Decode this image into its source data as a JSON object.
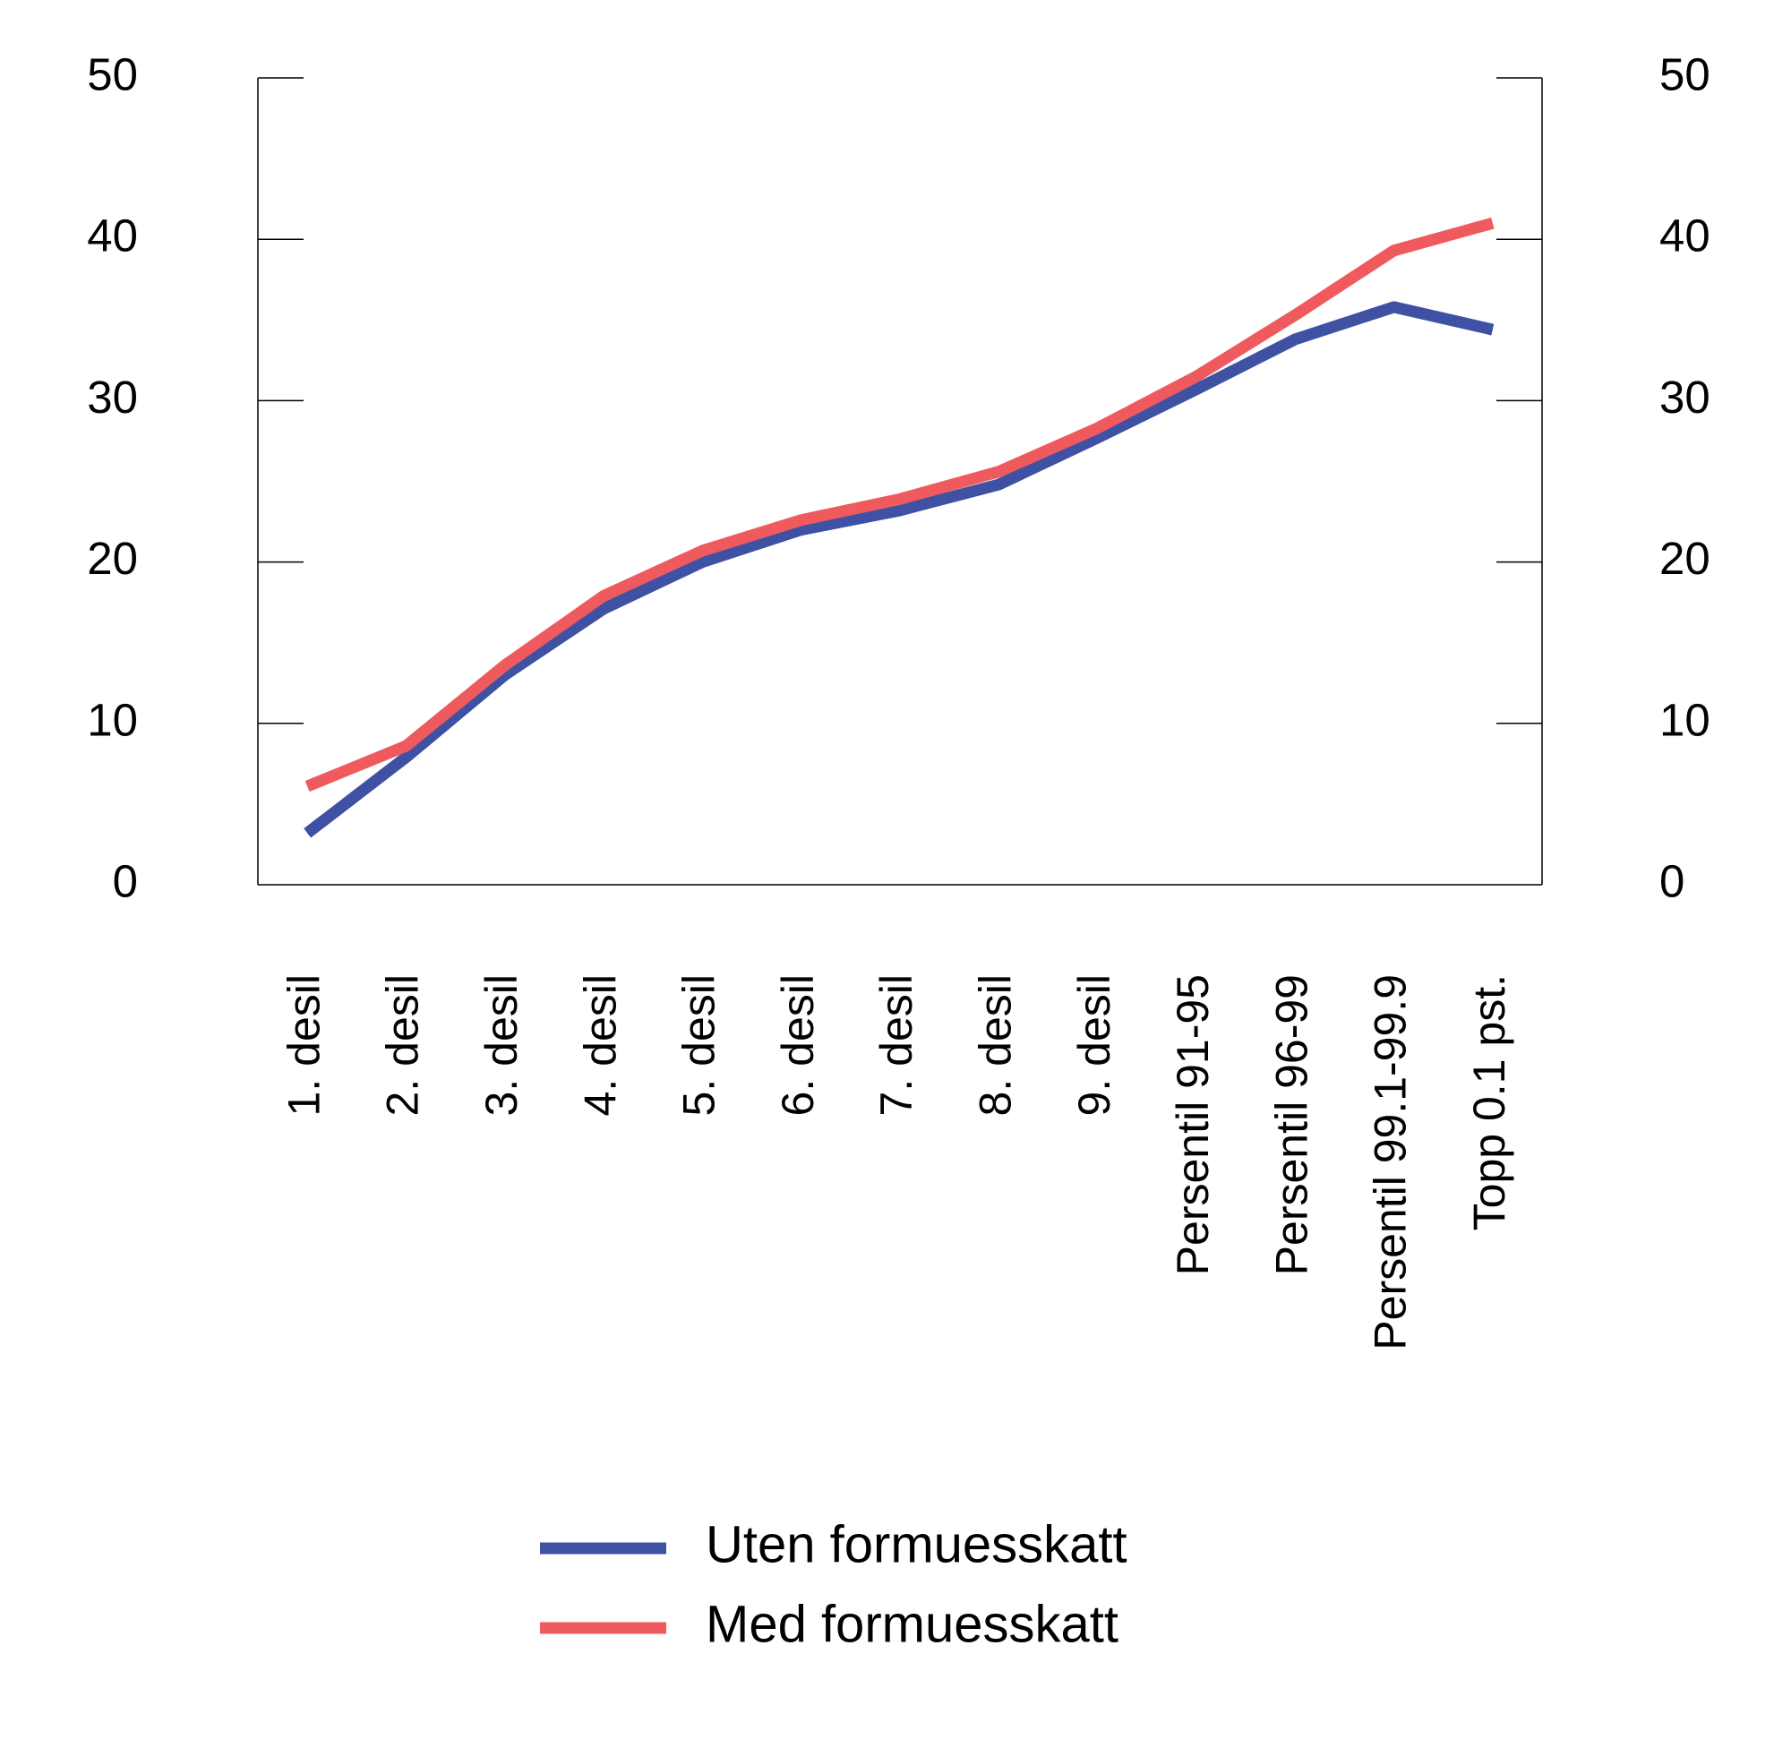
{
  "chart_data": {
    "type": "line",
    "categories": [
      "1. desil",
      "2. desil",
      "3. desil",
      "4. desil",
      "5. desil",
      "6. desil",
      "7. desil",
      "8. desil",
      "9. desil",
      "Persentil 91-95",
      "Persentil 96-99",
      "Persentil 99.1-99.9",
      "Topp 0.1 pst."
    ],
    "series": [
      {
        "name": "Uten formuesskatt",
        "color": "#3f51a3",
        "values": [
          3.2,
          7.9,
          13.0,
          17.1,
          20.0,
          22.0,
          23.2,
          24.8,
          27.7,
          30.7,
          33.8,
          35.8,
          34.4
        ]
      },
      {
        "name": "Med formuesskatt",
        "color": "#ef5a5f",
        "values": [
          6.1,
          8.6,
          13.6,
          17.9,
          20.7,
          22.6,
          23.9,
          25.6,
          28.3,
          31.5,
          35.3,
          39.3,
          41.0
        ]
      }
    ],
    "ylim": [
      0,
      50
    ],
    "yticks": [
      0,
      10,
      20,
      30,
      40,
      50
    ]
  }
}
